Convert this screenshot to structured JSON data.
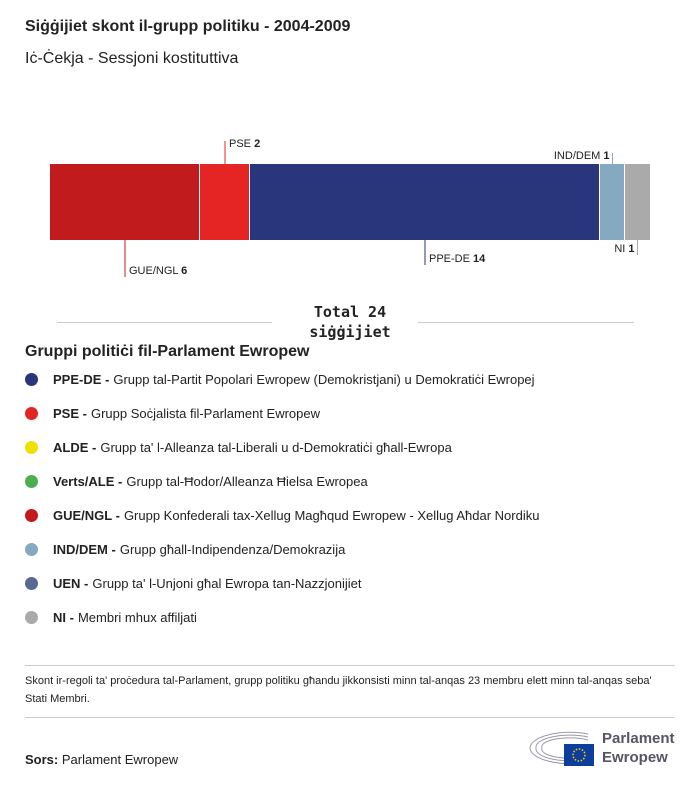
{
  "title": "Siġġijiet skont il-grupp politiku - 2004-2009",
  "subtitle": "Iċ-Ċekja - Sessjoni kostituttiva",
  "chart_data": {
    "type": "bar",
    "orientation": "horizontal-stacked",
    "categories": [
      "GUE/NGL",
      "PSE",
      "PPE-DE",
      "IND/DEM",
      "NI"
    ],
    "values": [
      6,
      2,
      14,
      1,
      1
    ],
    "colors": [
      "#c11b1e",
      "#e42523",
      "#29367b",
      "#85a9c1",
      "#aaaaaa"
    ],
    "total": 24
  },
  "total_line1": "Total 24",
  "total_line2": "siġġijiet",
  "legend": {
    "title": "Gruppi politiċi fil-Parlament Ewropew",
    "items": [
      {
        "abbr": "PPE-DE -",
        "name": "Grupp tal-Partit Popolari Ewropew (Demokristjani) u Demokratiċi Ewropej",
        "color": "#29367b"
      },
      {
        "abbr": "PSE -",
        "name": "Grupp Soċjalista fil-Parlament Ewropew",
        "color": "#e42523"
      },
      {
        "abbr": "ALDE -",
        "name": "Grupp ta' l-Alleanza tal-Liberali u d-Demokratiċi għall-Ewropa",
        "color": "#f0e000"
      },
      {
        "abbr": "Verts/ALE -",
        "name": "Grupp tal-Ħodor/Alleanza Ħielsa Ewropea",
        "color": "#4cae4f"
      },
      {
        "abbr": "GUE/NGL -",
        "name": "Grupp Konfederali tax-Xellug Magħqud Ewropew - Xellug Aħdar Nordiku",
        "color": "#c11b1e"
      },
      {
        "abbr": "IND/DEM -",
        "name": "Grupp għall-Indipendenza/Demokrazija",
        "color": "#85a9c1"
      },
      {
        "abbr": "UEN -",
        "name": "Grupp ta' l-Unjoni għal Ewropa tan-Nazzjonijiet",
        "color": "#576a93"
      },
      {
        "abbr": "NI -",
        "name": "Membri mhux affiljati",
        "color": "#aaaaaa"
      }
    ]
  },
  "note": "Skont ir-regoli ta' proċedura tal-Parlament, grupp politiku għandu jikkonsisti minn tal-anqas 23 membru elett minn tal-anqas seba' Stati Membri.",
  "source_label": "Sors:",
  "source": "Parlament Ewropew",
  "logo": {
    "line1": "Parlament",
    "line2": "Ewropew"
  }
}
